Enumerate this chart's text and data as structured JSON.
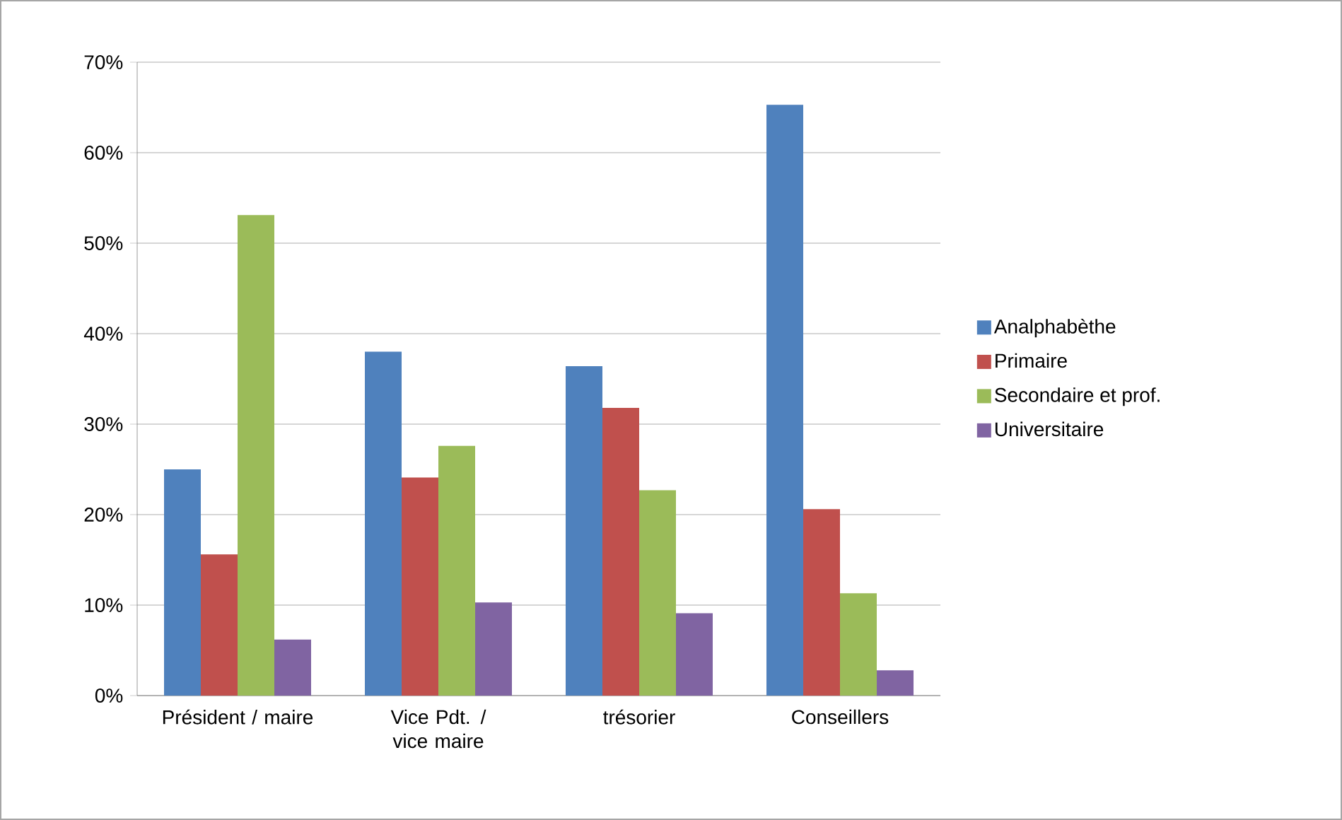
{
  "chart_data": {
    "type": "bar",
    "categories": [
      "Président / maire",
      "Vice Pdt. / vice maire",
      "trésorier",
      "Conseillers"
    ],
    "series": [
      {
        "name": "Analphabèthe",
        "color": "#4f81bd",
        "values": [
          25.0,
          38.0,
          36.4,
          65.3
        ]
      },
      {
        "name": "Primaire",
        "color": "#c0504d",
        "values": [
          15.6,
          24.1,
          31.8,
          20.6
        ]
      },
      {
        "name": "Secondaire et prof.",
        "color": "#9bbb59",
        "values": [
          53.1,
          27.6,
          22.7,
          11.3
        ]
      },
      {
        "name": "Universitaire",
        "color": "#8064a2",
        "values": [
          6.2,
          10.3,
          9.1,
          2.8
        ]
      }
    ],
    "ylim": [
      0,
      70
    ],
    "yticks": [
      {
        "value": 0,
        "label": "0%"
      },
      {
        "value": 10,
        "label": "10%"
      },
      {
        "value": 20,
        "label": "20%"
      },
      {
        "value": 30,
        "label": "30%"
      },
      {
        "value": 40,
        "label": "40%"
      },
      {
        "value": 50,
        "label": "50%"
      },
      {
        "value": 60,
        "label": "60%"
      },
      {
        "value": 70,
        "label": "70%"
      }
    ],
    "grid": "y",
    "legend": "right"
  }
}
